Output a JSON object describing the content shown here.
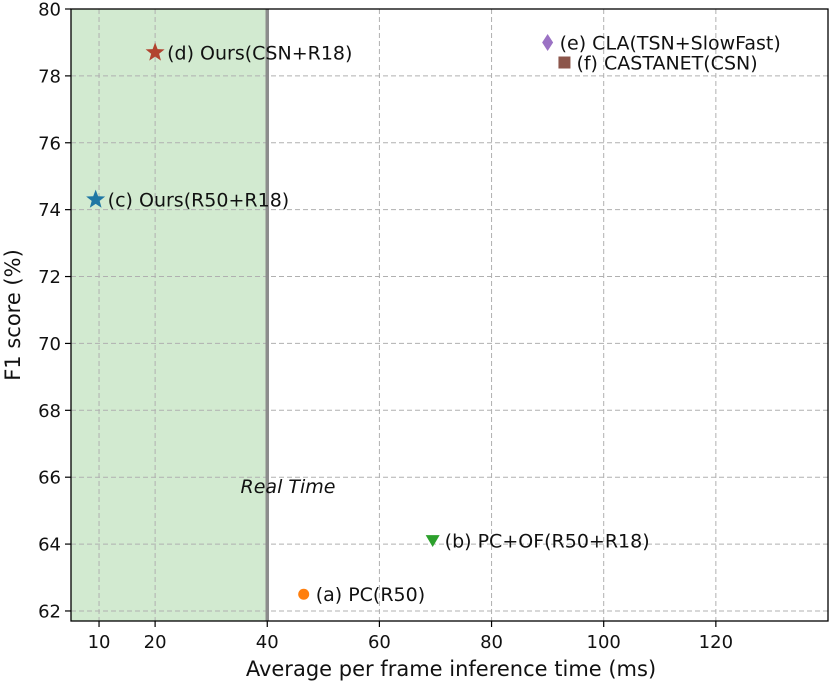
{
  "chart_data": {
    "type": "scatter",
    "title": "",
    "xlabel": "Average per frame inference time (ms)",
    "ylabel": "F1 score (%)",
    "xlim": [
      5,
      140
    ],
    "ylim": [
      61.7,
      80
    ],
    "x_ticks": [
      10,
      20,
      40,
      60,
      80,
      100,
      120
    ],
    "y_ticks": [
      62,
      64,
      66,
      68,
      70,
      72,
      74,
      76,
      78,
      80
    ],
    "grid": true,
    "real_time_region": {
      "x_range": [
        5,
        40
      ],
      "label": "Real Time",
      "fill_color": "#d2ead0",
      "boundary_color": "#8c8c8c"
    },
    "points": [
      {
        "label": "(a) PC(R50)",
        "x": 46.5,
        "y": 62.5,
        "marker": "circle",
        "color": "#ff7f0e"
      },
      {
        "label": "(b) PC+OF(R50+R18)",
        "x": 69.5,
        "y": 64.1,
        "marker": "triangle-down",
        "color": "#2ca02c"
      },
      {
        "label": "(c) Ours(R50+R18)",
        "x": 9.4,
        "y": 74.3,
        "marker": "star",
        "color": "#1f77a4"
      },
      {
        "label": "(d) Ours(CSN+R18)",
        "x": 20.0,
        "y": 78.7,
        "marker": "star",
        "color": "#b1432f"
      },
      {
        "label": "(e) CLA(TSN+SlowFast)",
        "x": 90.0,
        "y": 79.0,
        "marker": "diamond",
        "color": "#9b72c4"
      },
      {
        "label": "(f) CASTANET(CSN)",
        "x": 93.0,
        "y": 78.4,
        "marker": "square",
        "color": "#8c564b"
      }
    ]
  }
}
